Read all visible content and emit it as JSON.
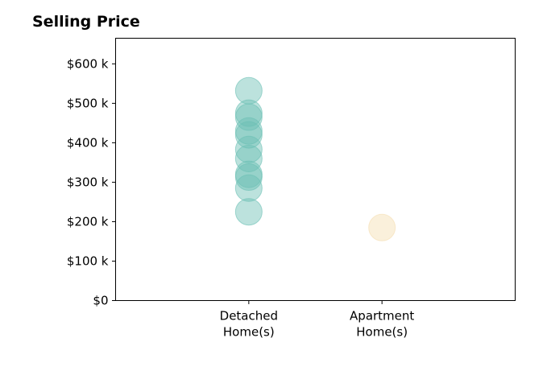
{
  "chart_data": {
    "type": "scatter",
    "title": "Selling Price",
    "xlabel": "",
    "ylabel": "",
    "categories": [
      "Detached\nHome(s)",
      "Apartment\nHome(s)"
    ],
    "y_tick_labels": [
      "$0",
      "$100 k",
      "$200 k",
      "$300 k",
      "$400 k",
      "$500 k",
      "$600 k"
    ],
    "y_ticks": [
      0,
      100000,
      200000,
      300000,
      400000,
      500000,
      600000
    ],
    "ylim": [
      0,
      665000
    ],
    "xlim": [
      -1,
      2
    ],
    "grid": false,
    "series": [
      {
        "category": "Detached\nHome(s)",
        "color": "#6bbfb4",
        "values": [
          532000,
          475000,
          465000,
          430000,
          420000,
          383000,
          360000,
          320000,
          313000,
          285000,
          225000
        ]
      },
      {
        "category": "Apartment\nHome(s)",
        "color": "#f5deb0",
        "values": [
          185000
        ]
      }
    ]
  }
}
